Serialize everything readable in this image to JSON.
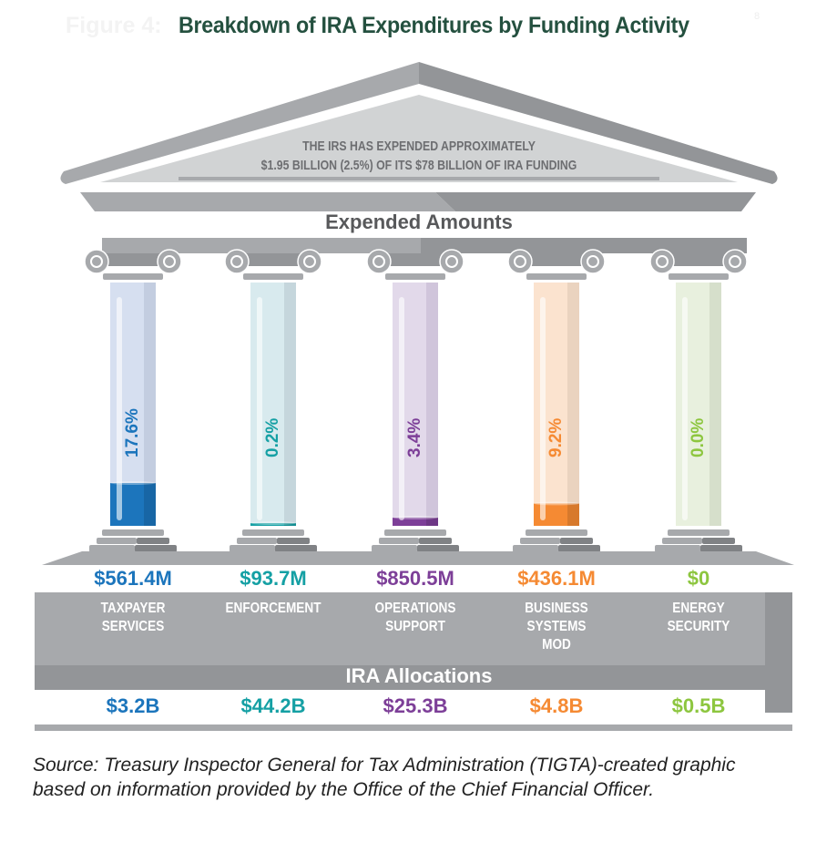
{
  "figure_label": "Figure 4:",
  "title_footnote": "8",
  "chart_data": {
    "type": "bar",
    "title": "Breakdown of IRA Expenditures by Funding Activity",
    "pediment_text": [
      "THE IRS HAS EXPENDED APPROXIMATELY",
      "$1.95 BILLION (2.5%) OF ITS $78 BILLION OF IRA FUNDING"
    ],
    "expended_heading": "Expended Amounts",
    "allocations_heading": "IRA Allocations",
    "categories": [
      {
        "name": [
          "TAXPAYER",
          "SERVICES"
        ],
        "percent_label": "17.6%",
        "percent": 17.6,
        "expended": "$561.4M",
        "allocation": "$3.2B",
        "color": "#1c75bc",
        "light": "#d6dff0",
        "shade": "#c3cde0"
      },
      {
        "name": [
          "ENFORCEMENT"
        ],
        "percent_label": "0.2%",
        "percent": 0.2,
        "expended": "$93.7M",
        "allocation": "$44.2B",
        "color": "#15a0a4",
        "light": "#d8eaee",
        "shade": "#c5d6dc"
      },
      {
        "name": [
          "OPERATIONS",
          "SUPPORT"
        ],
        "percent_label": "3.4%",
        "percent": 3.4,
        "expended": "$850.5M",
        "allocation": "$25.3B",
        "color": "#7d3f98",
        "light": "#e2d9ea",
        "shade": "#d0c5db"
      },
      {
        "name": [
          "BUSINESS",
          "SYSTEMS",
          "MOD"
        ],
        "percent_label": "9.2%",
        "percent": 9.2,
        "expended": "$436.1M",
        "allocation": "$4.8B",
        "color": "#f58a33",
        "light": "#fbe3cf",
        "shade": "#ead3bf"
      },
      {
        "name": [
          "ENERGY",
          "SECURITY"
        ],
        "percent_label": "0.0%",
        "percent": 0.0,
        "expended": "$0",
        "allocation": "$0.5B",
        "color": "#8dc63f",
        "light": "#e8f0de",
        "shade": "#d6dfcb"
      }
    ]
  },
  "source": "Source:  Treasury Inspector General for Tax Administration (TIGTA)-created graphic based on information provided by the Office of the Chief Financial Officer."
}
